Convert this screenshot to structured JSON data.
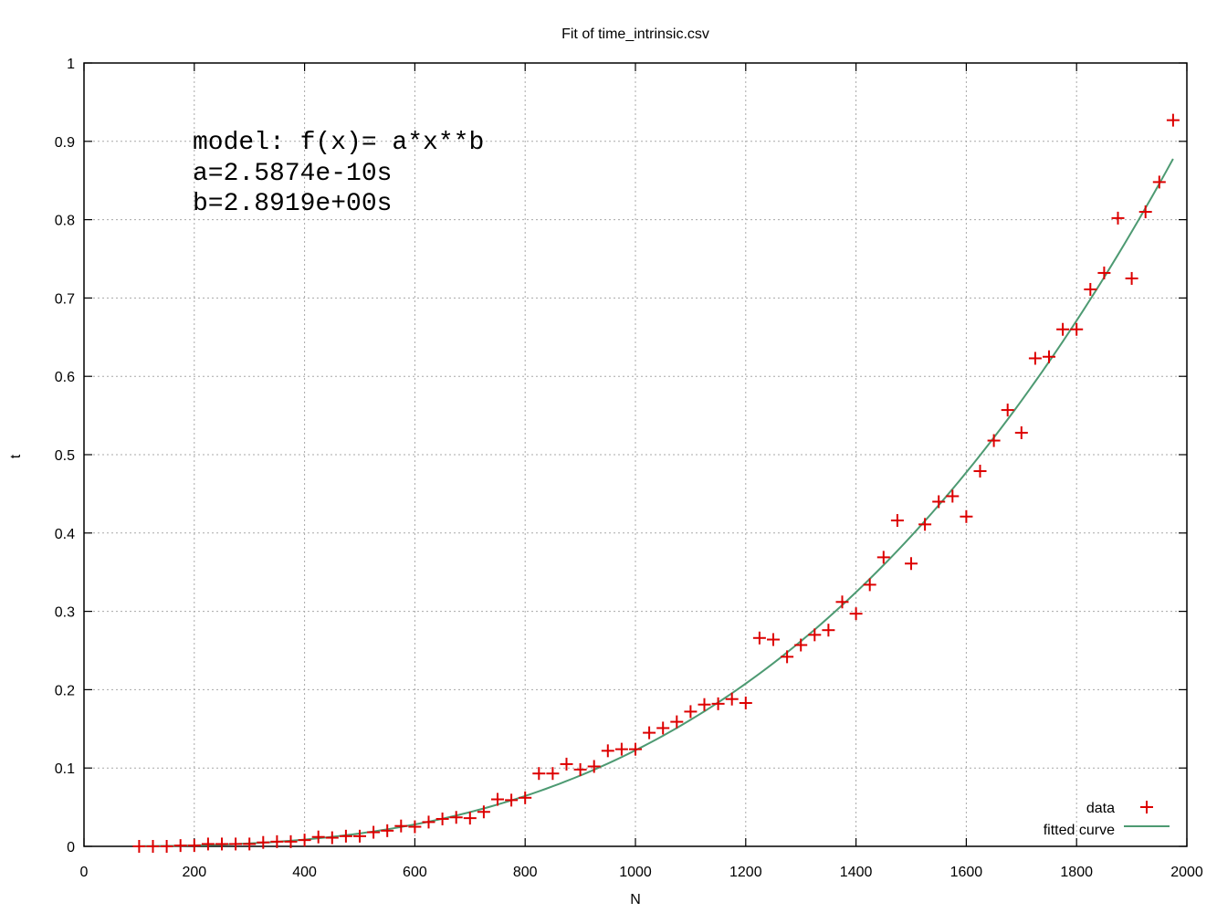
{
  "chart_data": {
    "type": "scatter",
    "title": "Fit of time_intrinsic.csv",
    "xlabel": "N",
    "ylabel": "t",
    "xlim": [
      0,
      2000
    ],
    "ylim": [
      0,
      1
    ],
    "xticks": [
      0,
      200,
      400,
      600,
      800,
      1000,
      1200,
      1400,
      1600,
      1800,
      2000
    ],
    "yticks": [
      0,
      0.1,
      0.2,
      0.3,
      0.4,
      0.5,
      0.6,
      0.7,
      0.8,
      0.9,
      1
    ],
    "xtick_labels": [
      "0",
      "200",
      "400",
      "600",
      "800",
      "1000",
      "1200",
      "1400",
      "1600",
      "1800",
      "2000"
    ],
    "ytick_labels": [
      "0",
      "0.1",
      "0.2",
      "0.3",
      "0.4",
      "0.5",
      "0.6",
      "0.7",
      "0.8",
      "0.9",
      "1"
    ],
    "grid": true,
    "legend_position": "bottom-right",
    "annotation_lines": [
      "model: f(x)= a*x**b",
      "a=2.5874e-10s",
      "b=2.8919e+00s"
    ],
    "series": [
      {
        "name": "data",
        "kind": "points",
        "marker": "plus",
        "color": "#dd0000",
        "x": [
          100,
          125,
          150,
          175,
          200,
          225,
          250,
          275,
          300,
          325,
          350,
          375,
          400,
          425,
          450,
          475,
          500,
          525,
          550,
          575,
          600,
          625,
          650,
          675,
          700,
          725,
          750,
          775,
          800,
          825,
          850,
          875,
          900,
          925,
          950,
          975,
          1000,
          1025,
          1050,
          1075,
          1100,
          1125,
          1150,
          1175,
          1200,
          1225,
          1250,
          1275,
          1300,
          1325,
          1350,
          1375,
          1400,
          1425,
          1450,
          1475,
          1500,
          1525,
          1550,
          1575,
          1600,
          1625,
          1650,
          1675,
          1700,
          1725,
          1750,
          1775,
          1800,
          1825,
          1850,
          1875,
          1900,
          1925,
          1950,
          1975
        ],
        "y": [
          0.0,
          0.0,
          0.0,
          0.001,
          0.001,
          0.003,
          0.003,
          0.003,
          0.003,
          0.005,
          0.006,
          0.006,
          0.008,
          0.012,
          0.011,
          0.013,
          0.013,
          0.018,
          0.02,
          0.026,
          0.025,
          0.031,
          0.035,
          0.037,
          0.036,
          0.044,
          0.06,
          0.059,
          0.062,
          0.093,
          0.093,
          0.105,
          0.098,
          0.102,
          0.122,
          0.124,
          0.124,
          0.145,
          0.151,
          0.159,
          0.172,
          0.181,
          0.182,
          0.188,
          0.183,
          0.266,
          0.264,
          0.242,
          0.257,
          0.27,
          0.276,
          0.312,
          0.297,
          0.334,
          0.369,
          0.416,
          0.361,
          0.411,
          0.44,
          0.447,
          0.421,
          0.479,
          0.518,
          0.557,
          0.528,
          0.623,
          0.625,
          0.66,
          0.66,
          0.711,
          0.732,
          0.802,
          0.725,
          0.81,
          0.848,
          0.927
        ]
      },
      {
        "name": "fitted curve",
        "kind": "line",
        "color": "#4d9a72",
        "model": {
          "a": 2.5874e-10,
          "b": 2.8919
        },
        "x_range": [
          100,
          1975
        ]
      }
    ]
  }
}
